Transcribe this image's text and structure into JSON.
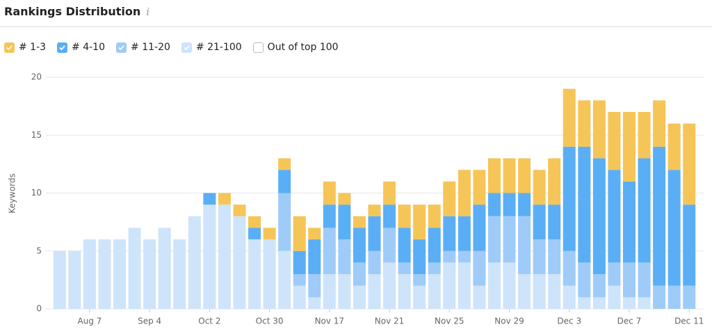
{
  "chart_data": {
    "type": "stacked_bar",
    "title": "Rankings Distribution",
    "info_icon": "i",
    "y_label": "Keywords",
    "categories": [
      null,
      null,
      "Aug 7",
      null,
      null,
      null,
      "Sep 4",
      null,
      null,
      null,
      "Oct 2",
      null,
      null,
      null,
      "Oct 30",
      null,
      null,
      null,
      "Nov 17",
      null,
      null,
      null,
      "Nov 21",
      null,
      null,
      null,
      "Nov 25",
      null,
      null,
      null,
      "Nov 29",
      null,
      null,
      null,
      "Dec 3",
      null,
      null,
      null,
      "Dec 7",
      null,
      null,
      null,
      "Dec 11"
    ],
    "series": [
      {
        "name": "# 1-3",
        "color": "#f5c558",
        "values": [
          0,
          0,
          0,
          0,
          0,
          0,
          0,
          0,
          0,
          0,
          0,
          1,
          1,
          1,
          1,
          1,
          3,
          1,
          2,
          1,
          1,
          1,
          2,
          2,
          3,
          2,
          3,
          4,
          3,
          3,
          3,
          3,
          3,
          4,
          5,
          4,
          5,
          5,
          6,
          4,
          4,
          4,
          7
        ]
      },
      {
        "name": "# 4-10",
        "color": "#5aaef6",
        "values": [
          0,
          0,
          0,
          0,
          0,
          0,
          0,
          0,
          0,
          0,
          1,
          0,
          0,
          1,
          0,
          2,
          2,
          3,
          2,
          3,
          3,
          3,
          2,
          3,
          3,
          3,
          3,
          3,
          4,
          2,
          2,
          2,
          3,
          3,
          9,
          10,
          10,
          8,
          7,
          9,
          12,
          10,
          7
        ]
      },
      {
        "name": "# 11-20",
        "color": "#9fcbf8",
        "values": [
          0,
          0,
          0,
          0,
          0,
          0,
          0,
          0,
          0,
          0,
          0,
          0,
          0,
          0,
          0,
          5,
          1,
          2,
          4,
          3,
          2,
          2,
          3,
          1,
          1,
          1,
          1,
          1,
          3,
          4,
          4,
          5,
          3,
          3,
          3,
          3,
          2,
          2,
          3,
          3,
          2,
          2,
          2
        ]
      },
      {
        "name": "# 21-100",
        "color": "#cde4fb",
        "values": [
          5,
          5,
          6,
          6,
          6,
          7,
          6,
          7,
          6,
          8,
          9,
          9,
          8,
          6,
          6,
          5,
          2,
          1,
          3,
          3,
          2,
          3,
          4,
          3,
          2,
          3,
          4,
          4,
          2,
          4,
          4,
          3,
          3,
          3,
          2,
          1,
          1,
          2,
          1,
          1,
          0,
          0,
          0
        ]
      }
    ],
    "inactive_series": [
      "Out of top 100"
    ],
    "ylim": [
      0,
      20
    ],
    "yticks": [
      0,
      5,
      10,
      15,
      20
    ],
    "grid": true
  }
}
